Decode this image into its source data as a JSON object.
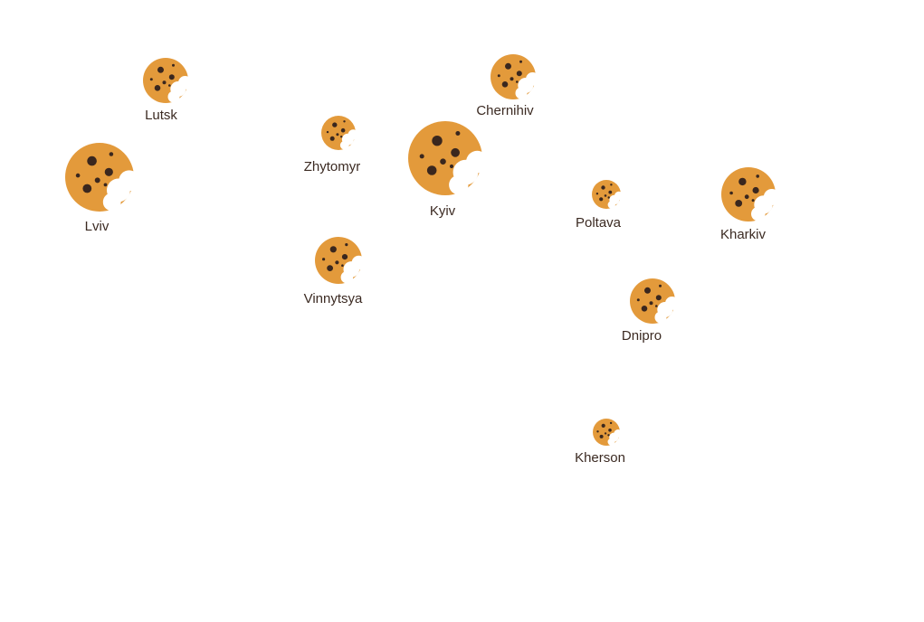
{
  "colors": {
    "cookie": "#e39a3b",
    "chip": "#3a271e",
    "label": "#3b2a22",
    "background": "#ffffff"
  },
  "icon": "cookie-icon",
  "cities": [
    {
      "name": "Lutsk"
    },
    {
      "name": "Lviv"
    },
    {
      "name": "Zhytomyr"
    },
    {
      "name": "Vinnytsya"
    },
    {
      "name": "Kyiv"
    },
    {
      "name": "Chernihiv"
    },
    {
      "name": "Poltava"
    },
    {
      "name": "Kharkiv"
    },
    {
      "name": "Dnipro"
    },
    {
      "name": "Kherson"
    }
  ]
}
